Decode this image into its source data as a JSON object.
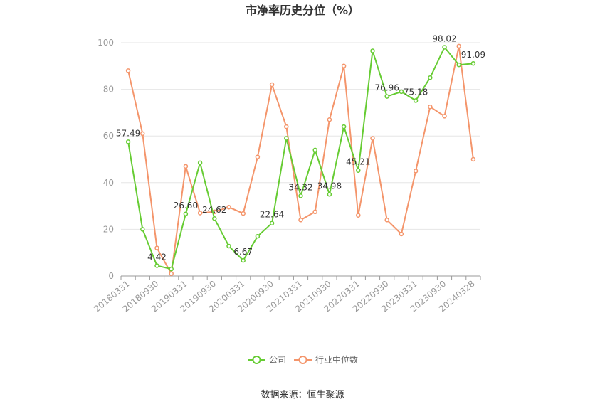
{
  "chart_data": {
    "type": "line",
    "title": "市净率历史分位（%）",
    "source": "数据来源：恒生聚源",
    "ylim": [
      0,
      100
    ],
    "yticks": [
      0,
      20,
      40,
      60,
      80,
      100
    ],
    "grid": true,
    "legend_placement": "bottom",
    "x_tick_labels": [
      "20180331",
      "20180930",
      "20190331",
      "20190930",
      "20200331",
      "20200930",
      "20210331",
      "20210930",
      "20220331",
      "20220930",
      "20230331",
      "20230930",
      "20240328"
    ],
    "series": [
      {
        "name": "公司",
        "color": "#66cc33",
        "values": [
          57.49,
          20.0,
          4.42,
          3.0,
          26.6,
          48.5,
          24.62,
          12.8,
          6.67,
          17.0,
          22.64,
          59.0,
          34.32,
          54.0,
          34.98,
          64.0,
          45.21,
          96.5,
          76.96,
          79.0,
          75.18,
          85.0,
          98.02,
          90.5,
          91.09
        ],
        "labels": {
          "0": "57.49",
          "2": "4.42",
          "4": "26.60",
          "6": "24.62",
          "8": "6.67",
          "10": "22.64",
          "12": "34.32",
          "14": "34.98",
          "16": "45.21",
          "18": "76.96",
          "20": "75.18",
          "22": "98.02",
          "24": "91.09"
        }
      },
      {
        "name": "行业中位数",
        "color": "#f4956b",
        "values": [
          88.0,
          61.0,
          12.0,
          1.0,
          47.0,
          27.0,
          27.5,
          29.5,
          26.8,
          51.0,
          82.0,
          64.0,
          24.0,
          27.5,
          67.0,
          90.0,
          26.0,
          59.0,
          24.0,
          18.0,
          45.0,
          72.5,
          68.5,
          98.5,
          50.0
        ]
      }
    ]
  }
}
